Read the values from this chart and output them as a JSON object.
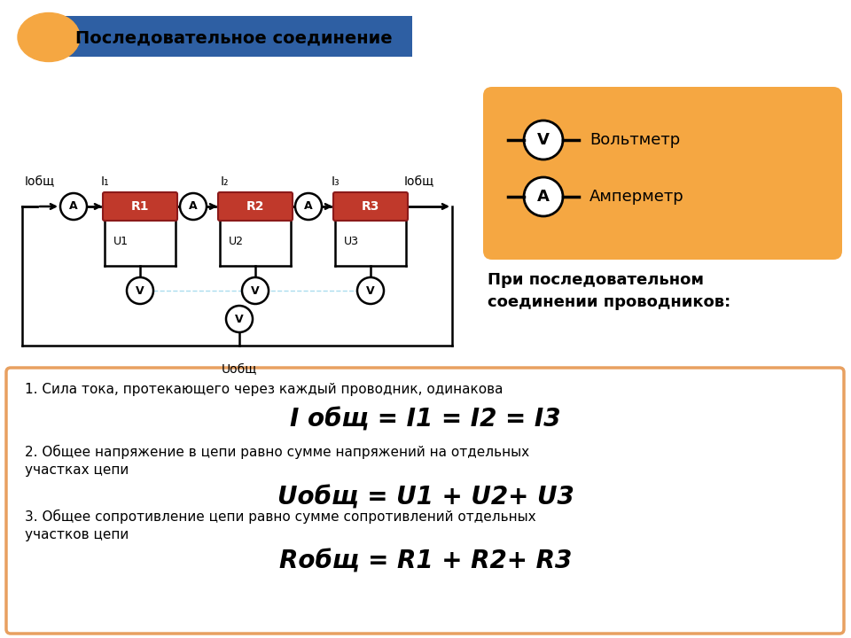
{
  "title": "Последовательное соединение",
  "bg_color": "#ffffff",
  "header_color": "#2e5fa3",
  "header_text_color": "#000000",
  "orange_color": "#f5a742",
  "resistor_color": "#c0392b",
  "resistor_edge": "#8b1a1a",
  "wire_color": "#000000",
  "legend_bg": "#f5a742",
  "bottom_box_border": "#e8a060",
  "text1": "1. Сила тока, протекающего через каждый проводник, одинакова",
  "formula1": "I общ = I1 = I2 = I3",
  "text2": "2. Общее напряжение в цепи равно сумме напряжений на отдельных\nучастках цепи",
  "formula2": "Uобщ = U1 + U2+ U3",
  "text3": "3. Общее сопротивление цепи равно сумме сопротивлений отдельных\nучастков цепи",
  "formula3": "Rобщ = R1 + R2+ R3",
  "legend_voltmeter": "Вольтметр",
  "legend_ammeter": "Амперметр"
}
